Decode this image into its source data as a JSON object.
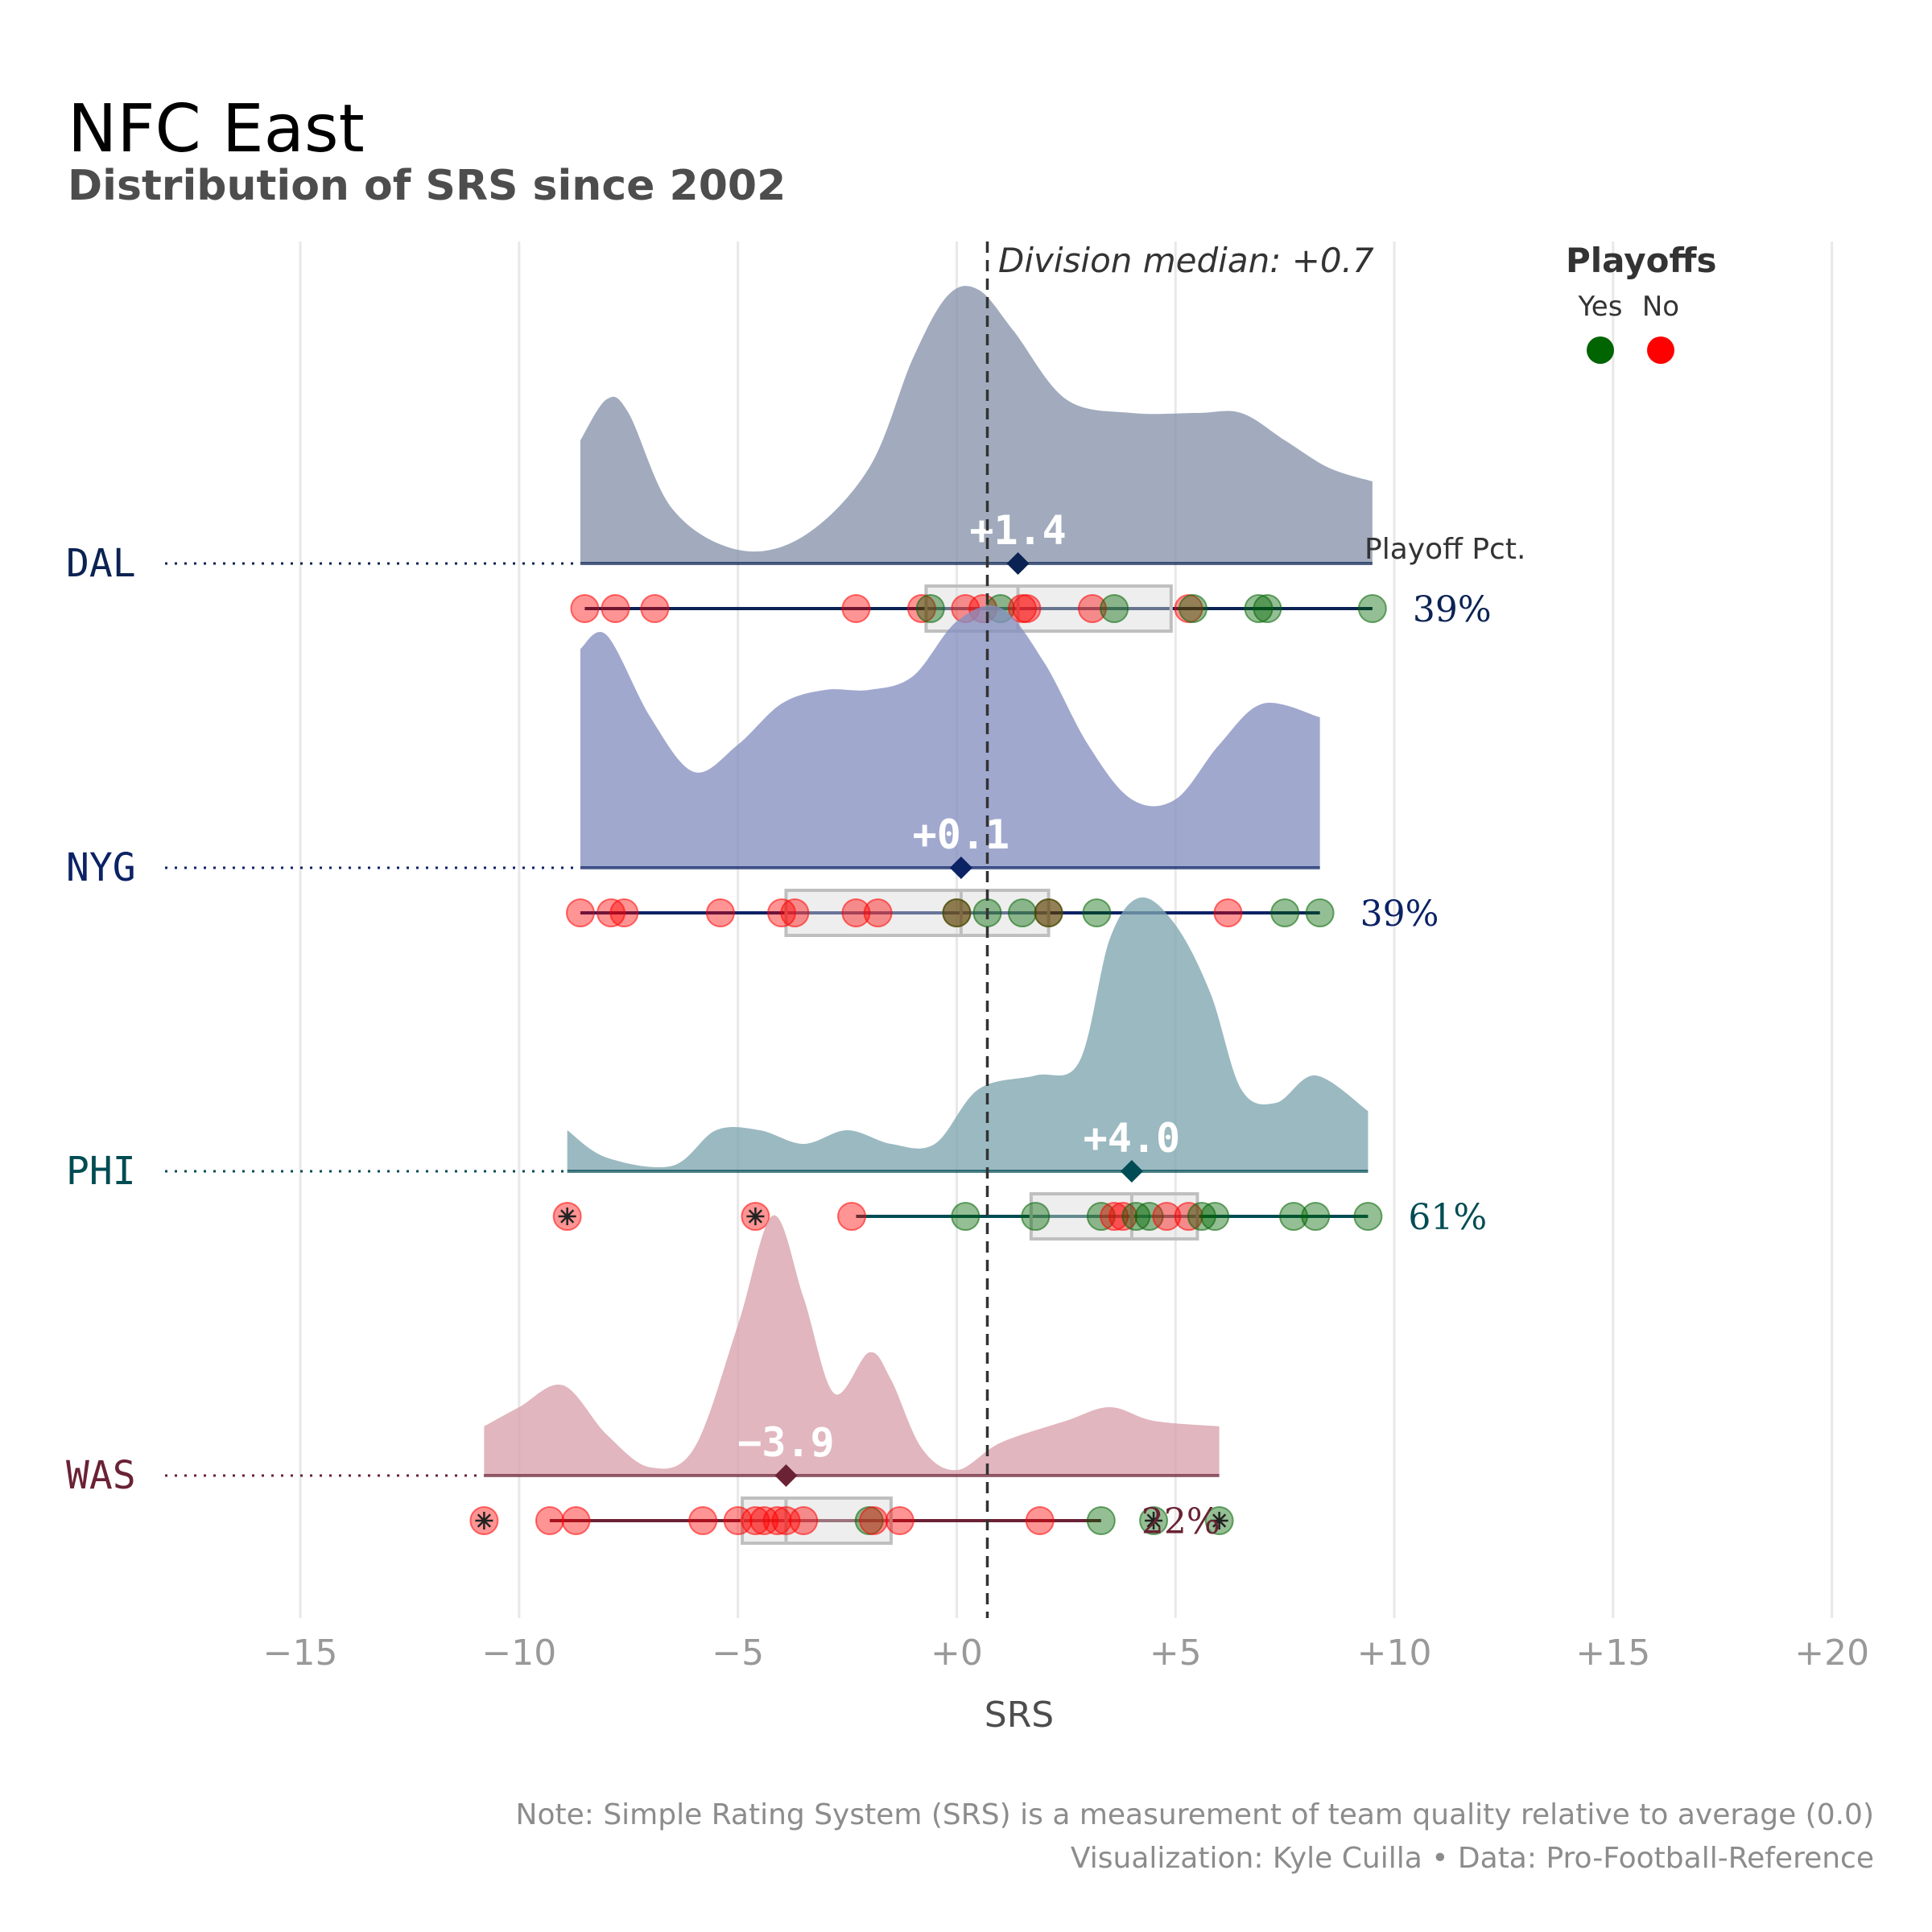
{
  "title": "NFC East",
  "subtitle": "Distribution of SRS since 2002",
  "xlabel": "SRS",
  "division_median_label": "Division median: +0.7",
  "legend": {
    "title": "Playoffs",
    "items": [
      {
        "label": "Yes",
        "color": "#006400"
      },
      {
        "label": "No",
        "color": "#ff0000"
      }
    ]
  },
  "playoff_pct_header": "Playoff Pct.",
  "note_line1": "Note: Simple Rating System (SRS) is a measurement of team quality relative to average (0.0)",
  "note_line2": "Visualization: Kyle Cuilla  •  Data: Pro-Football-Reference",
  "chart_data": {
    "type": "ridgeline",
    "x_domain": [
      -18,
      21
    ],
    "x_ticks": [
      -15,
      -10,
      -5,
      0,
      5,
      10,
      15,
      20
    ],
    "x_tick_labels": [
      "−15",
      "−10",
      "−5",
      "+0",
      "+5",
      "+10",
      "+15",
      "+20"
    ],
    "division_median": 0.7,
    "grid": true,
    "legend_position": "top-right",
    "teams": [
      {
        "name": "DAL",
        "color": "#0b2353",
        "density_color": "#8693aa",
        "median": 1.4,
        "median_label": "+1.4",
        "q1": -0.7,
        "q3": 4.9,
        "whisker_low": -8.5,
        "whisker_high": 9.5,
        "playoff_pct": "39%",
        "density": [
          [
            -8.6,
            0.45
          ],
          [
            -8.0,
            0.6
          ],
          [
            -7.5,
            0.55
          ],
          [
            -6.5,
            0.2
          ],
          [
            -5.0,
            0.05
          ],
          [
            -3.5,
            0.1
          ],
          [
            -2.0,
            0.35
          ],
          [
            -1.0,
            0.75
          ],
          [
            -0.2,
            0.98
          ],
          [
            0.5,
            1.0
          ],
          [
            1.3,
            0.85
          ],
          [
            2.5,
            0.6
          ],
          [
            4.0,
            0.55
          ],
          [
            5.5,
            0.55
          ],
          [
            6.5,
            0.55
          ],
          [
            7.5,
            0.45
          ],
          [
            8.5,
            0.35
          ],
          [
            9.5,
            0.3
          ]
        ],
        "points": [
          {
            "x": -8.5,
            "playoff": "No"
          },
          {
            "x": -7.8,
            "playoff": "No"
          },
          {
            "x": -6.9,
            "playoff": "No"
          },
          {
            "x": -2.3,
            "playoff": "No"
          },
          {
            "x": -0.8,
            "playoff": "No"
          },
          {
            "x": -0.6,
            "playoff": "Yes"
          },
          {
            "x": 0.2,
            "playoff": "No"
          },
          {
            "x": 0.6,
            "playoff": "No"
          },
          {
            "x": 1.0,
            "playoff": "Yes"
          },
          {
            "x": 1.5,
            "playoff": "No"
          },
          {
            "x": 1.6,
            "playoff": "No"
          },
          {
            "x": 3.1,
            "playoff": "No"
          },
          {
            "x": 3.6,
            "playoff": "Yes"
          },
          {
            "x": 5.3,
            "playoff": "No"
          },
          {
            "x": 5.4,
            "playoff": "Yes"
          },
          {
            "x": 6.9,
            "playoff": "Yes"
          },
          {
            "x": 7.1,
            "playoff": "Yes"
          },
          {
            "x": 9.5,
            "playoff": "Yes"
          }
        ]
      },
      {
        "name": "NYG",
        "color": "#0b2265",
        "density_color": "#8590c0",
        "median": 0.1,
        "median_label": "+0.1",
        "q1": -3.9,
        "q3": 2.1,
        "whisker_low": -8.6,
        "whisker_high": 8.3,
        "playoff_pct": "39%",
        "density": [
          [
            -8.6,
            0.8
          ],
          [
            -8.0,
            0.85
          ],
          [
            -7.0,
            0.55
          ],
          [
            -6.0,
            0.35
          ],
          [
            -5.0,
            0.45
          ],
          [
            -4.0,
            0.6
          ],
          [
            -3.0,
            0.65
          ],
          [
            -2.0,
            0.65
          ],
          [
            -1.0,
            0.7
          ],
          [
            0.0,
            0.9
          ],
          [
            1.0,
            0.95
          ],
          [
            2.0,
            0.75
          ],
          [
            3.0,
            0.45
          ],
          [
            4.0,
            0.25
          ],
          [
            5.0,
            0.25
          ],
          [
            6.0,
            0.45
          ],
          [
            7.0,
            0.6
          ],
          [
            8.3,
            0.55
          ]
        ],
        "points": [
          {
            "x": -8.6,
            "playoff": "No"
          },
          {
            "x": -7.9,
            "playoff": "No"
          },
          {
            "x": -7.6,
            "playoff": "No"
          },
          {
            "x": -5.4,
            "playoff": "No"
          },
          {
            "x": -4.0,
            "playoff": "No"
          },
          {
            "x": -3.7,
            "playoff": "No"
          },
          {
            "x": -2.3,
            "playoff": "No"
          },
          {
            "x": -1.8,
            "playoff": "No"
          },
          {
            "x": 0.0,
            "playoff": "No"
          },
          {
            "x": 0.0,
            "playoff": "Yes"
          },
          {
            "x": 0.7,
            "playoff": "Yes"
          },
          {
            "x": 1.5,
            "playoff": "Yes"
          },
          {
            "x": 2.1,
            "playoff": "No"
          },
          {
            "x": 2.1,
            "playoff": "Yes"
          },
          {
            "x": 3.2,
            "playoff": "Yes"
          },
          {
            "x": 6.2,
            "playoff": "No"
          },
          {
            "x": 7.5,
            "playoff": "Yes"
          },
          {
            "x": 8.3,
            "playoff": "Yes"
          }
        ]
      },
      {
        "name": "PHI",
        "color": "#004c54",
        "density_color": "#7fa5af",
        "median": 4.0,
        "median_label": "+4.0",
        "q1": 1.7,
        "q3": 5.5,
        "whisker_low": -2.3,
        "whisker_high": 9.4,
        "playoff_pct": "61%",
        "density": [
          [
            -8.9,
            0.15
          ],
          [
            -8.0,
            0.05
          ],
          [
            -6.5,
            0.02
          ],
          [
            -5.5,
            0.15
          ],
          [
            -4.5,
            0.15
          ],
          [
            -3.5,
            0.1
          ],
          [
            -2.5,
            0.15
          ],
          [
            -1.5,
            0.1
          ],
          [
            -0.5,
            0.1
          ],
          [
            0.5,
            0.3
          ],
          [
            1.8,
            0.35
          ],
          [
            2.8,
            0.4
          ],
          [
            3.5,
            0.85
          ],
          [
            4.2,
            1.0
          ],
          [
            5.0,
            0.9
          ],
          [
            5.8,
            0.65
          ],
          [
            6.5,
            0.3
          ],
          [
            7.3,
            0.25
          ],
          [
            8.2,
            0.35
          ],
          [
            9.4,
            0.22
          ]
        ],
        "points": [
          {
            "x": -8.9,
            "playoff": "No",
            "marked": true
          },
          {
            "x": -4.6,
            "playoff": "No",
            "marked": true
          },
          {
            "x": -2.4,
            "playoff": "No"
          },
          {
            "x": 0.2,
            "playoff": "Yes"
          },
          {
            "x": 1.8,
            "playoff": "Yes"
          },
          {
            "x": 3.3,
            "playoff": "Yes"
          },
          {
            "x": 3.6,
            "playoff": "No"
          },
          {
            "x": 3.8,
            "playoff": "No"
          },
          {
            "x": 4.1,
            "playoff": "Yes"
          },
          {
            "x": 4.4,
            "playoff": "Yes"
          },
          {
            "x": 4.8,
            "playoff": "No"
          },
          {
            "x": 5.3,
            "playoff": "No"
          },
          {
            "x": 5.6,
            "playoff": "Yes"
          },
          {
            "x": 5.9,
            "playoff": "Yes"
          },
          {
            "x": 7.7,
            "playoff": "Yes"
          },
          {
            "x": 8.2,
            "playoff": "Yes"
          },
          {
            "x": 9.4,
            "playoff": "Yes"
          }
        ]
      },
      {
        "name": "WAS",
        "color": "#6a2234",
        "density_color": "#d9a1ac",
        "median": -3.9,
        "median_label": "−3.9",
        "q1": -4.9,
        "q3": -1.5,
        "whisker_low": -9.3,
        "whisker_high": 3.3,
        "playoff_pct": "22%",
        "density": [
          [
            -10.8,
            0.18
          ],
          [
            -10.0,
            0.25
          ],
          [
            -9.0,
            0.33
          ],
          [
            -8.0,
            0.15
          ],
          [
            -7.0,
            0.03
          ],
          [
            -6.0,
            0.1
          ],
          [
            -5.0,
            0.55
          ],
          [
            -4.2,
            0.95
          ],
          [
            -3.5,
            0.65
          ],
          [
            -2.8,
            0.3
          ],
          [
            -2.0,
            0.45
          ],
          [
            -1.5,
            0.35
          ],
          [
            -0.8,
            0.1
          ],
          [
            0.0,
            0.02
          ],
          [
            1.0,
            0.12
          ],
          [
            2.5,
            0.2
          ],
          [
            3.5,
            0.25
          ],
          [
            4.5,
            0.2
          ],
          [
            6.0,
            0.18
          ]
        ],
        "points": [
          {
            "x": -10.8,
            "playoff": "No",
            "marked": true
          },
          {
            "x": -9.3,
            "playoff": "No"
          },
          {
            "x": -8.7,
            "playoff": "No"
          },
          {
            "x": -5.8,
            "playoff": "No"
          },
          {
            "x": -5.0,
            "playoff": "No"
          },
          {
            "x": -4.6,
            "playoff": "No"
          },
          {
            "x": -4.4,
            "playoff": "No"
          },
          {
            "x": -4.1,
            "playoff": "No"
          },
          {
            "x": -3.9,
            "playoff": "No"
          },
          {
            "x": -3.5,
            "playoff": "No"
          },
          {
            "x": -2.0,
            "playoff": "Yes"
          },
          {
            "x": -1.9,
            "playoff": "No"
          },
          {
            "x": -1.3,
            "playoff": "No"
          },
          {
            "x": 1.9,
            "playoff": "No"
          },
          {
            "x": 3.3,
            "playoff": "Yes"
          },
          {
            "x": 4.5,
            "playoff": "Yes",
            "marked": true
          },
          {
            "x": 6.0,
            "playoff": "Yes",
            "marked": true
          }
        ]
      }
    ]
  }
}
